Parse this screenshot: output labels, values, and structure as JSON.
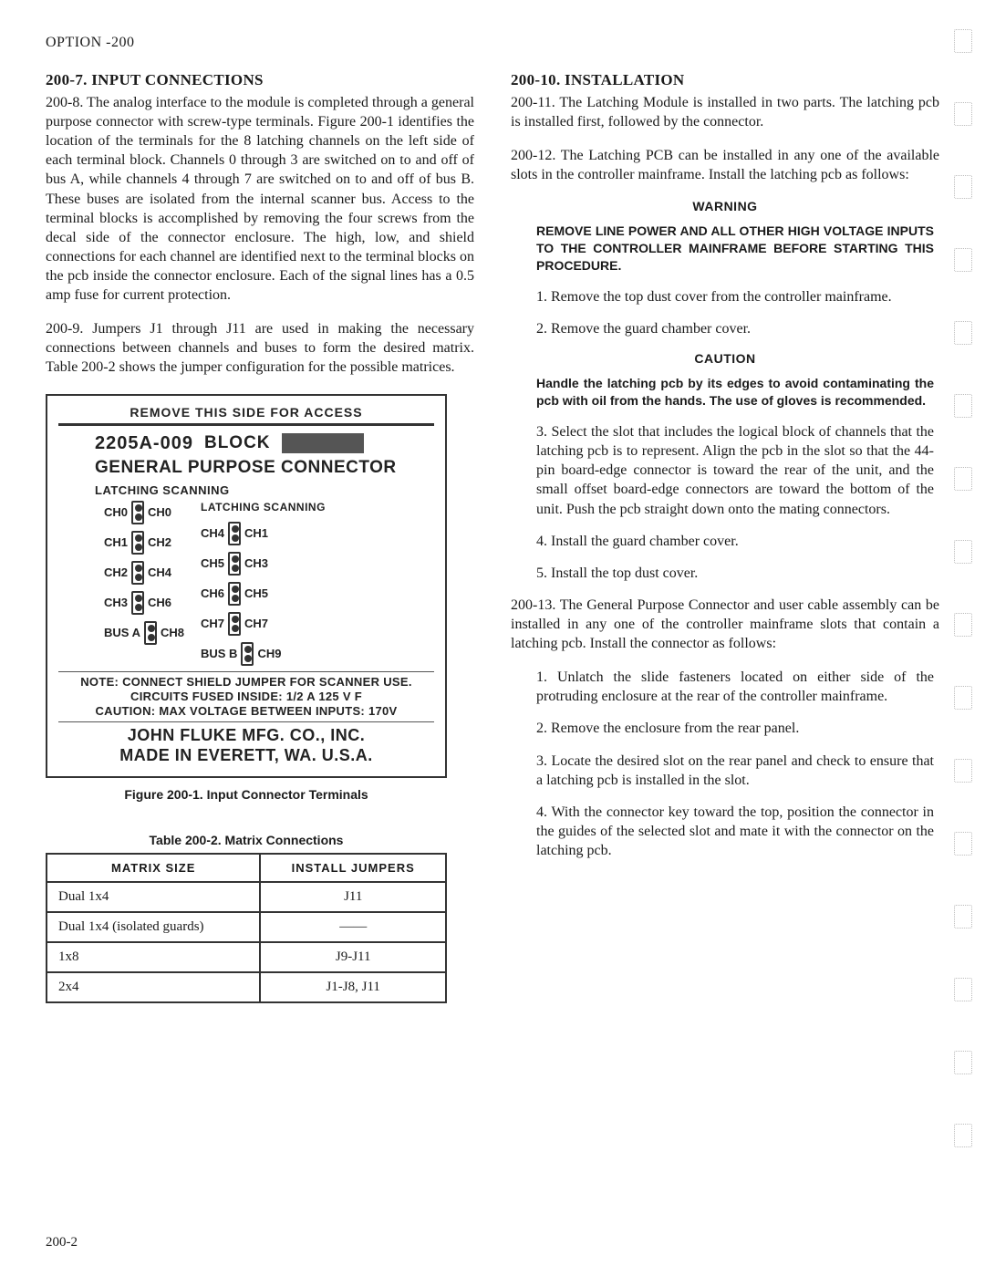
{
  "header": "OPTION -200",
  "pageNumber": "200-2",
  "left": {
    "sec7": {
      "heading": "200-7.  INPUT CONNECTIONS",
      "p8": "200-8.  The analog interface to the module is completed through a general purpose connector with screw-type terminals. Figure 200-1 identifies the location of the terminals for the 8 latching channels on the left side of each terminal block. Channels 0 through 3 are switched on to and off of bus A, while channels 4 through 7 are switched on to and off of bus B. These buses are isolated from the internal scanner bus. Access to the terminal blocks is accomplished by removing the four screws from the decal side of the connector enclosure. The high, low, and shield connections for each channel are identified next to the terminal blocks on the pcb inside the connector enclosure. Each of the signal lines has a 0.5 amp fuse for current protection.",
      "p9": "200-9.  Jumpers J1 through J11 are used in making the necessary connections between channels and buses to form the desired matrix. Table 200-2 shows the jumper configuration for the possible matrices."
    },
    "diagram": {
      "topBar": "REMOVE THIS SIDE FOR ACCESS",
      "partNo": "2205A-009",
      "block": "BLOCK",
      "gpc": "GENERAL PURPOSE CONNECTOR",
      "latchScan1": "LATCHING   SCANNING",
      "latchScan2": "LATCHING   SCANNING",
      "leftCh": [
        "CH0",
        "CH1",
        "CH2",
        "CH3",
        "BUS A"
      ],
      "leftScan": [
        "CH0",
        "CH2",
        "CH4",
        "CH6",
        "CH8"
      ],
      "rightLatch": [
        "CH4",
        "CH5",
        "CH6",
        "CH7",
        "BUS B"
      ],
      "rightScan": [
        "CH1",
        "CH3",
        "CH5",
        "CH7",
        "CH9"
      ],
      "note1": "NOTE: CONNECT SHIELD JUMPER FOR SCANNER USE.",
      "note2": "CIRCUITS FUSED INSIDE:  1/2 A 125 V F",
      "note3": "CAUTION: MAX VOLTAGE BETWEEN INPUTS: 170V",
      "fluke1": "JOHN FLUKE MFG. CO., INC.",
      "fluke2": "MADE IN EVERETT, WA. U.S.A."
    },
    "figCaption": "Figure 200-1. Input Connector Terminals",
    "tblCaption": "Table 200-2. Matrix Connections",
    "table": {
      "head": [
        "MATRIX SIZE",
        "INSTALL  JUMPERS"
      ],
      "rows": [
        [
          "Dual 1x4",
          "J11"
        ],
        [
          "Dual 1x4 (isolated guards)",
          "——"
        ],
        [
          "1x8",
          "J9-J11"
        ],
        [
          "2x4",
          "J1-J8, J11"
        ]
      ]
    }
  },
  "right": {
    "sec10": {
      "heading": "200-10.  INSTALLATION",
      "p11": "200-11.  The Latching Module is installed in two parts. The latching pcb is installed first, followed by the connector.",
      "p12": "200-12.  The Latching PCB can be installed in any one of the available slots in the controller mainframe. Install the latching pcb as follows:"
    },
    "warningTitle": "WARNING",
    "warningBody": "REMOVE LINE POWER AND ALL OTHER HIGH VOLTAGE INPUTS TO THE CONTROLLER MAINFRAME BEFORE STARTING THIS PROCEDURE.",
    "steps12": [
      "1.   Remove the top dust cover from the controller mainframe.",
      "2.   Remove the guard chamber cover."
    ],
    "cautionTitle": "CAUTION",
    "cautionBody": "Handle the latching pcb by its edges to avoid contaminating the pcb with oil from the hands. The use of gloves is recommended.",
    "steps12b": [
      "3.   Select the slot that includes the logical block of channels that the latching pcb is to represent. Align the pcb in the slot so that the 44-pin board-edge connector is toward the rear of the unit, and the small offset board-edge connectors are toward the bottom of the unit. Push the pcb straight down onto the mating connectors.",
      "4.   Install the guard chamber cover.",
      "5.   Install the top dust cover."
    ],
    "p13": "200-13.  The General Purpose Connector and user cable assembly can be installed in any one of the controller mainframe slots that contain a latching pcb. Install the connector as follows:",
    "steps13": [
      "1.   Unlatch the slide fasteners located on either side of the protruding enclosure at the rear of the controller mainframe.",
      "2.   Remove the enclosure from the rear panel.",
      "3.   Locate the desired slot on the rear panel and check to ensure that a latching pcb is installed in the slot.",
      "4.   With the connector key toward the top, position the connector in the guides of the selected slot and mate it with the connector on the latching pcb."
    ]
  }
}
